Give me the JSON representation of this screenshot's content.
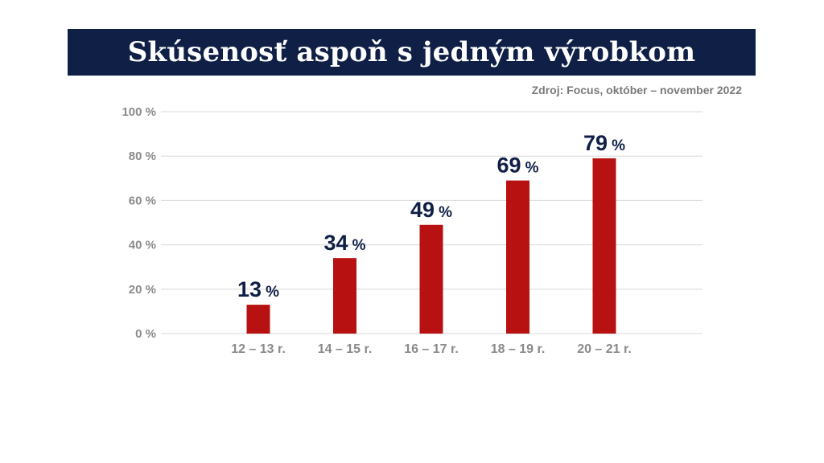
{
  "header": {
    "title": "Skúsenosť aspoň s jedným výrobkom",
    "source": "Zdroj: Focus, október – november 2022"
  },
  "colors": {
    "title_bg": "#0f1f45",
    "bar": "#b71111",
    "value_label": "#0f1f45",
    "axis_text": "#8a8a8a",
    "grid": "#d8d8d8"
  },
  "chart_data": {
    "type": "bar",
    "title": "Skúsenosť aspoň s jedným výrobkom",
    "categories": [
      "12 – 13 r.",
      "14 – 15 r.",
      "16 – 17 r.",
      "18 – 19 r.",
      "20 – 21 r."
    ],
    "values": [
      13,
      34,
      49,
      69,
      79
    ],
    "value_unit": "%",
    "ylim": [
      0,
      100
    ],
    "yticks": [
      0,
      20,
      40,
      60,
      80,
      100
    ],
    "ytick_labels": [
      "0 %",
      "20 %",
      "40 %",
      "60 %",
      "80 %",
      "100 %"
    ],
    "grid": true,
    "legend": "none"
  }
}
